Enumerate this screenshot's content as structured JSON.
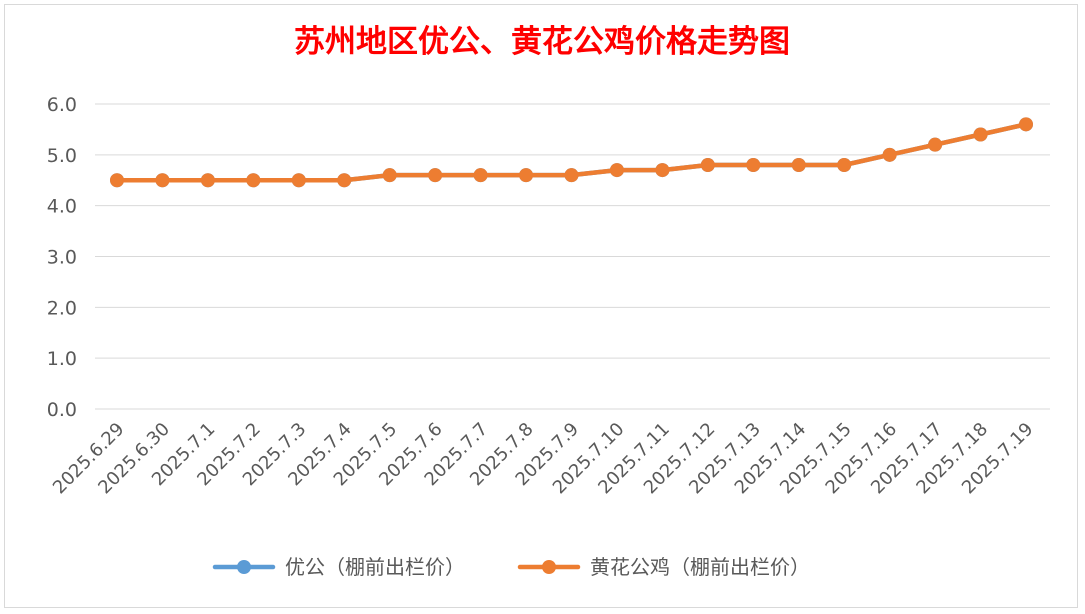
{
  "chart_data": {
    "type": "line",
    "title": "苏州地区优公、黄花公鸡价格走势图",
    "xlabel": "",
    "ylabel": "",
    "categories": [
      "2025.6.29",
      "2025.6.30",
      "2025.7.1",
      "2025.7.2",
      "2025.7.3",
      "2025.7.4",
      "2025.7.5",
      "2025.7.6",
      "2025.7.7",
      "2025.7.8",
      "2025.7.9",
      "2025.7.10",
      "2025.7.11",
      "2025.7.12",
      "2025.7.13",
      "2025.7.14",
      "2025.7.15",
      "2025.7.16",
      "2025.7.17",
      "2025.7.18",
      "2025.7.19"
    ],
    "ylim": [
      0,
      6
    ],
    "yticks": [
      "0.0",
      "1.0",
      "2.0",
      "3.0",
      "4.0",
      "5.0",
      "6.0"
    ],
    "grid": true,
    "legend_position": "bottom",
    "series": [
      {
        "name": "优公（棚前出栏价）",
        "color": "#5b9bd5",
        "values": [
          4.5,
          4.5,
          4.5,
          4.5,
          4.5,
          4.5,
          4.6,
          4.6,
          4.6,
          4.6,
          4.6,
          4.7,
          4.7,
          4.8,
          4.8,
          4.8,
          4.8,
          5.0,
          5.2,
          5.4,
          5.6
        ]
      },
      {
        "name": "黄花公鸡（棚前出栏价）",
        "color": "#ed7d31",
        "values": [
          4.5,
          4.5,
          4.5,
          4.5,
          4.5,
          4.5,
          4.6,
          4.6,
          4.6,
          4.6,
          4.6,
          4.7,
          4.7,
          4.8,
          4.8,
          4.8,
          4.8,
          5.0,
          5.2,
          5.4,
          5.6
        ]
      }
    ]
  }
}
